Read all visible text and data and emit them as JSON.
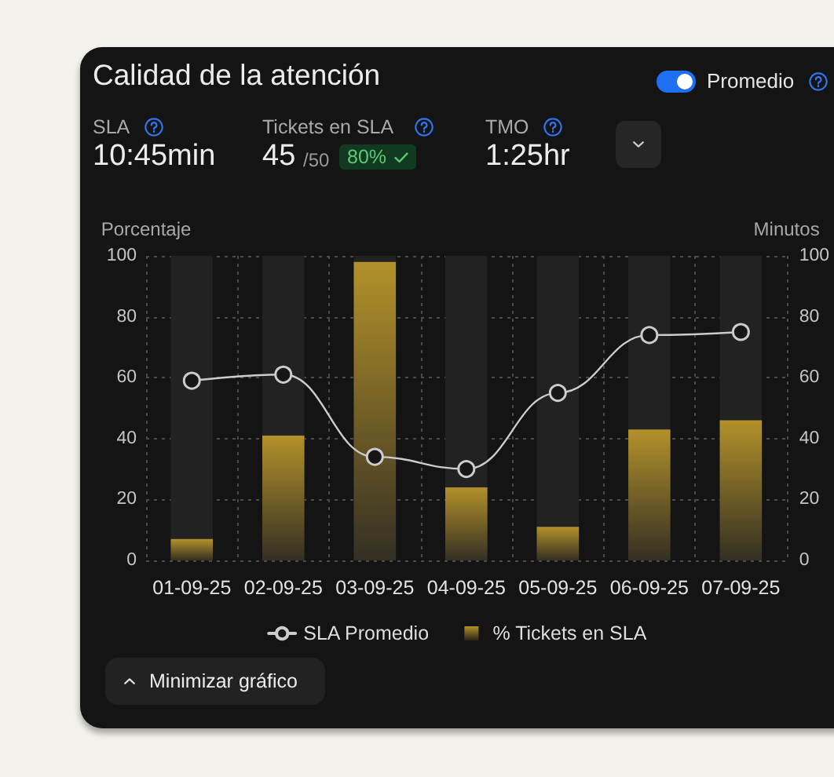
{
  "chart_data": {
    "type": "bar",
    "title": "Calidad de la atención",
    "ylabel": "Porcentaje",
    "y2label": "Minutos",
    "categories": [
      "01-09-25",
      "02-09-25",
      "03-09-25",
      "04-09-25",
      "05-09-25",
      "06-09-25",
      "07-09-25"
    ],
    "series": [
      {
        "name": "SLA Promedio",
        "type": "line",
        "axis": "y2",
        "color": "#cccccc",
        "values": [
          59,
          61,
          34,
          30,
          55,
          74,
          75
        ]
      },
      {
        "name": "% Tickets en SLA",
        "type": "bar",
        "color": "#b3912a",
        "values": [
          7,
          41,
          98,
          24,
          11,
          43,
          46
        ]
      }
    ],
    "ylim": [
      0,
      100
    ],
    "yticks": [
      0,
      20,
      40,
      60,
      80,
      100
    ],
    "y2lim": [
      0,
      100
    ],
    "y2ticks": [
      0,
      20,
      40,
      60,
      80,
      100
    ],
    "grid": true,
    "legend": "bottom",
    "marker": "circle",
    "annotations": [
      "Promedio",
      "SLA",
      "10:45min",
      "Tickets en SLA",
      "45",
      "/50",
      "80%",
      "TMO",
      "1:25hr",
      "Minimizar gráfico"
    ]
  }
}
